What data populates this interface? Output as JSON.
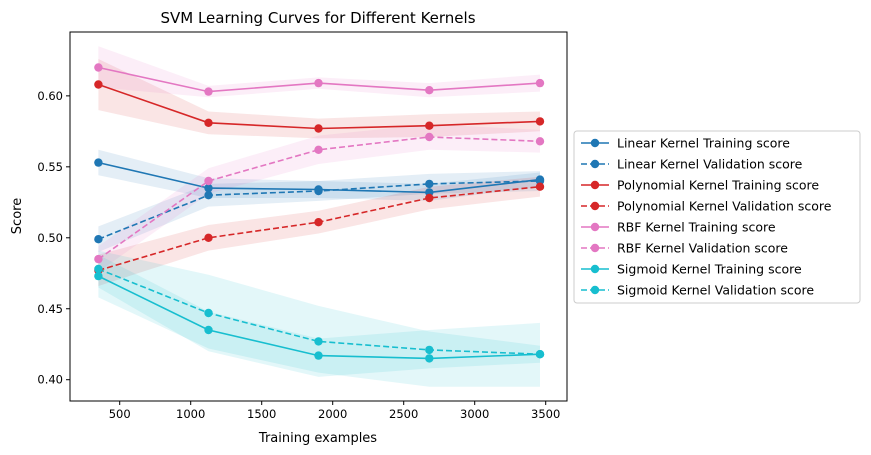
{
  "chart_data": {
    "type": "line",
    "title": "SVM Learning Curves for Different Kernels",
    "xlabel": "Training examples",
    "ylabel": "Score",
    "xlim": [
      150,
      3650
    ],
    "ylim": [
      0.385,
      0.645
    ],
    "xticks": [
      500,
      1000,
      1500,
      2000,
      2500,
      3000,
      3500
    ],
    "yticks": [
      0.4,
      0.45,
      0.5,
      0.55,
      0.6
    ],
    "legend_position": "center-right, outside plot",
    "grid": false,
    "x": [
      350,
      1125,
      1900,
      2680,
      3460
    ],
    "series": [
      {
        "name": "Linear Kernel Training score",
        "color": "#1f77b4",
        "style": "solid",
        "values": [
          0.553,
          0.535,
          0.534,
          0.532,
          0.541
        ],
        "lower": [
          0.544,
          0.528,
          0.528,
          0.526,
          0.536
        ],
        "upper": [
          0.562,
          0.542,
          0.54,
          0.538,
          0.546
        ]
      },
      {
        "name": "Linear Kernel Validation score",
        "color": "#1f77b4",
        "style": "dashed",
        "values": [
          0.499,
          0.53,
          0.533,
          0.538,
          0.54
        ],
        "lower": [
          0.49,
          0.522,
          0.526,
          0.531,
          0.533
        ],
        "upper": [
          0.508,
          0.538,
          0.54,
          0.545,
          0.547
        ]
      },
      {
        "name": "Polynomial Kernel Training score",
        "color": "#d62728",
        "style": "solid",
        "values": [
          0.608,
          0.581,
          0.577,
          0.579,
          0.582
        ],
        "lower": [
          0.59,
          0.573,
          0.57,
          0.571,
          0.575
        ],
        "upper": [
          0.626,
          0.589,
          0.584,
          0.587,
          0.589
        ]
      },
      {
        "name": "Polynomial Kernel Validation score",
        "color": "#d62728",
        "style": "dashed",
        "values": [
          0.477,
          0.5,
          0.511,
          0.528,
          0.536
        ],
        "lower": [
          0.466,
          0.491,
          0.503,
          0.52,
          0.529
        ],
        "upper": [
          0.488,
          0.509,
          0.519,
          0.536,
          0.543
        ]
      },
      {
        "name": "RBF Kernel Training score",
        "color": "#e377c2",
        "style": "solid",
        "values": [
          0.62,
          0.603,
          0.609,
          0.604,
          0.609
        ],
        "lower": [
          0.606,
          0.599,
          0.605,
          0.599,
          0.603
        ],
        "upper": [
          0.635,
          0.607,
          0.613,
          0.609,
          0.615
        ]
      },
      {
        "name": "RBF Kernel Validation score",
        "color": "#e377c2",
        "style": "dashed",
        "values": [
          0.485,
          0.54,
          0.562,
          0.571,
          0.568
        ],
        "lower": [
          0.476,
          0.531,
          0.552,
          0.562,
          0.56
        ],
        "upper": [
          0.494,
          0.549,
          0.572,
          0.58,
          0.576
        ]
      },
      {
        "name": "Sigmoid Kernel Training score",
        "color": "#17becf",
        "style": "solid",
        "values": [
          0.473,
          0.435,
          0.417,
          0.415,
          0.418
        ],
        "lower": [
          0.458,
          0.422,
          0.405,
          0.395,
          0.395
        ],
        "upper": [
          0.488,
          0.448,
          0.429,
          0.435,
          0.44
        ]
      },
      {
        "name": "Sigmoid Kernel Validation score",
        "color": "#17becf",
        "style": "dashed",
        "values": [
          0.478,
          0.447,
          0.427,
          0.421,
          0.418
        ],
        "lower": [
          0.465,
          0.42,
          0.402,
          0.408,
          0.412
        ],
        "upper": [
          0.491,
          0.474,
          0.452,
          0.434,
          0.424
        ]
      }
    ]
  }
}
